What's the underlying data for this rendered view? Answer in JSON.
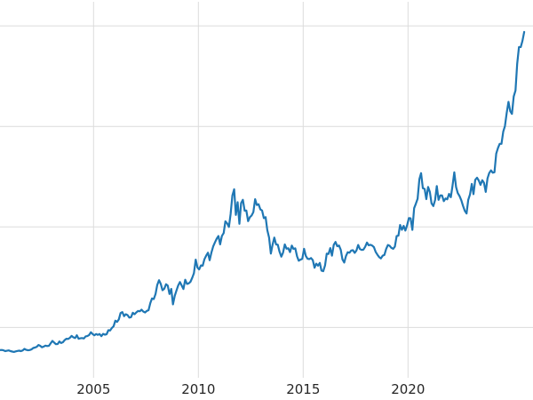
{
  "chart_data": {
    "type": "line",
    "title": "",
    "xlabel": "",
    "ylabel": "",
    "legend": null,
    "grid": true,
    "line_color": "#1f77b4",
    "grid_color": "#dcdcdc",
    "background_color": "#ffffff",
    "tick_label_color": "#262626",
    "x_range": [
      2000.54,
      2025.96
    ],
    "y_range": [
      0,
      3740
    ],
    "x_ticks": [
      {
        "value": 2005,
        "label": "2005"
      },
      {
        "value": 2010,
        "label": "2010"
      },
      {
        "value": 2015,
        "label": "2015"
      },
      {
        "value": 2020,
        "label": "2020"
      }
    ],
    "y_gridlines": [
      500,
      1500,
      2500,
      3500
    ],
    "series": {
      "x_start": 2000.54,
      "x_step": 0.0833333,
      "values": [
        276,
        277,
        273,
        265,
        269,
        272,
        265,
        261,
        257,
        263,
        267,
        270,
        265,
        272,
        287,
        278,
        274,
        276,
        282,
        296,
        301,
        308,
        326,
        318,
        303,
        310,
        320,
        316,
        318,
        342,
        367,
        350,
        334,
        336,
        361,
        346,
        354,
        375,
        388,
        386,
        398,
        416,
        402,
        395,
        423,
        388,
        393,
        395,
        391,
        412,
        415,
        425,
        453,
        435,
        422,
        435,
        427,
        435,
        414,
        437,
        429,
        433,
        473,
        470,
        495,
        513,
        568,
        556,
        582,
        644,
        653,
        613,
        632,
        623,
        599,
        603,
        646,
        632,
        650,
        664,
        661,
        677,
        659,
        650,
        665,
        672,
        743,
        789,
        783,
        833,
        923,
        971,
        933,
        871,
        885,
        930,
        918,
        833,
        884,
        730,
        814,
        869,
        919,
        952,
        916,
        883,
        975,
        934,
        939,
        955,
        995,
        1040,
        1175,
        1096,
        1078,
        1118,
        1115,
        1179,
        1215,
        1244,
        1169,
        1246,
        1307,
        1346,
        1383,
        1410,
        1327,
        1411,
        1439,
        1556,
        1536,
        1500,
        1628,
        1813,
        1875,
        1620,
        1746,
        1531,
        1737,
        1770,
        1662,
        1664,
        1558,
        1598,
        1614,
        1648,
        1776,
        1719,
        1726,
        1675,
        1664,
        1588,
        1598,
        1469,
        1394,
        1235,
        1323,
        1394,
        1326,
        1324,
        1253,
        1205,
        1244,
        1326,
        1284,
        1288,
        1250,
        1315,
        1282,
        1287,
        1208,
        1164,
        1175,
        1184,
        1283,
        1213,
        1184,
        1180,
        1191,
        1171,
        1095,
        1135,
        1115,
        1142,
        1065,
        1060,
        1118,
        1234,
        1232,
        1290,
        1215,
        1322,
        1351,
        1309,
        1316,
        1272,
        1178,
        1146,
        1212,
        1248,
        1244,
        1266,
        1269,
        1242,
        1267,
        1321,
        1280,
        1271,
        1275,
        1303,
        1345,
        1318,
        1323,
        1315,
        1300,
        1252,
        1224,
        1201,
        1187,
        1215,
        1222,
        1281,
        1321,
        1313,
        1292,
        1283,
        1305,
        1409,
        1414,
        1520,
        1472,
        1511,
        1464,
        1517,
        1589,
        1586,
        1471,
        1687,
        1730,
        1781,
        1976,
        2035,
        1886,
        1879,
        1777,
        1898,
        1848,
        1734,
        1708,
        1768,
        1907,
        1770,
        1814,
        1814,
        1757,
        1783,
        1775,
        1829,
        1797,
        1909,
        2043,
        1897,
        1837,
        1807,
        1766,
        1711,
        1661,
        1634,
        1769,
        1824,
        1928,
        1827,
        1969,
        1990,
        1963,
        1919,
        1965,
        1940,
        1849,
        1983,
        2036,
        2063,
        2040,
        2044,
        2230,
        2286,
        2327,
        2327,
        2448,
        2503,
        2635,
        2744,
        2651,
        2625,
        2798,
        2858,
        3124,
        3289,
        3290,
        3350,
        3440
      ]
    }
  }
}
